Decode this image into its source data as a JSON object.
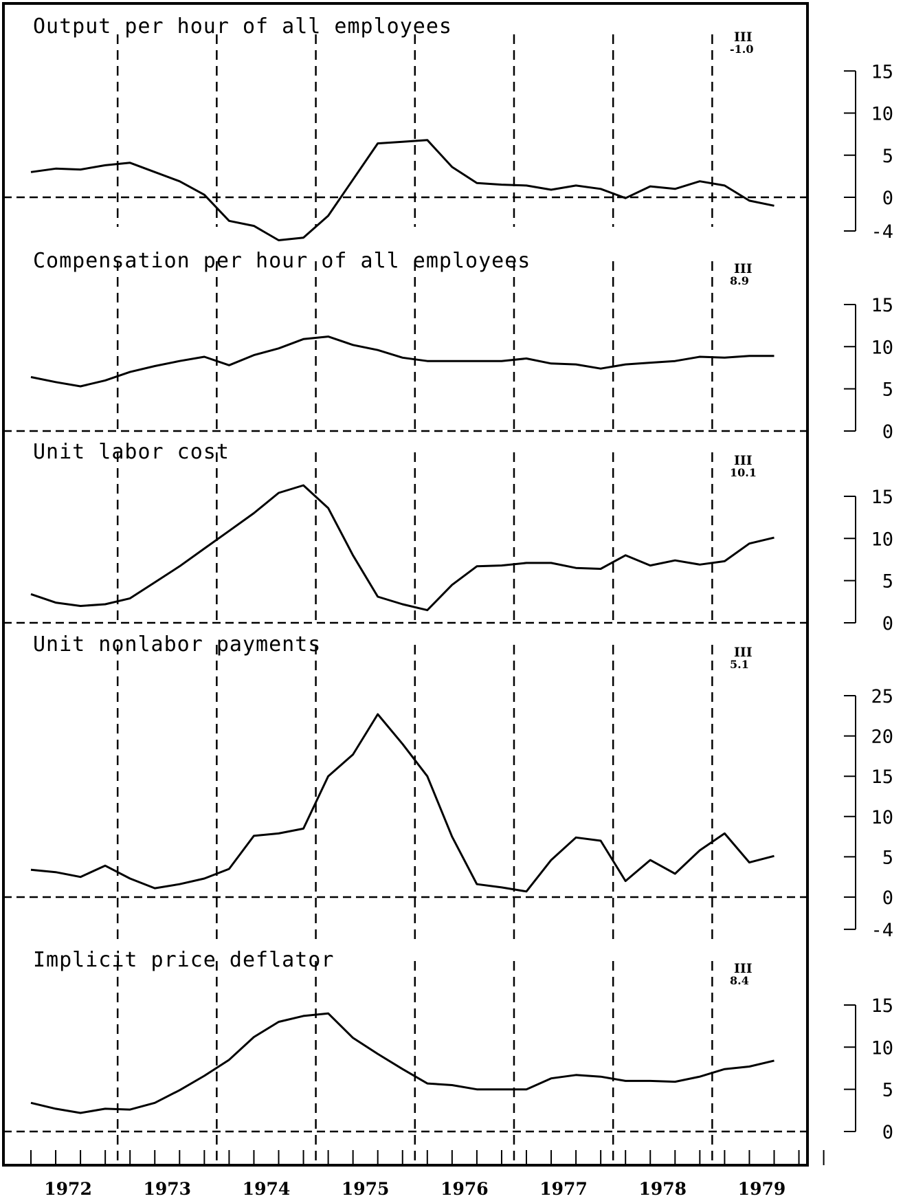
{
  "chart_data": {
    "type": "line",
    "x_label": "",
    "x_ticks": [
      "1972",
      "1973",
      "1974",
      "1975",
      "1976",
      "1977",
      "1978",
      "1979"
    ],
    "quarters_per_year": 4,
    "x_start": "1972 Q1",
    "x_end": "1979 Q3",
    "panels": [
      {
        "title": "Output per hour of all employees",
        "annotation_quarter": "III",
        "annotation_value": "-1.0",
        "yticks": [
          15,
          10,
          5,
          0,
          -4
        ],
        "ylim": [
          -4,
          15
        ],
        "values": [
          3.0,
          3.4,
          3.3,
          3.8,
          4.1,
          3.0,
          1.9,
          0.3,
          -2.8,
          -3.4,
          -5.1,
          -4.8,
          -2.2,
          2.1,
          6.4,
          6.6,
          6.8,
          3.6,
          1.7,
          1.5,
          1.4,
          0.9,
          1.4,
          1.0,
          -0.1,
          1.3,
          1.0,
          1.9,
          1.4,
          -0.4,
          -1.0
        ]
      },
      {
        "title": "Compensation per hour of all employees",
        "annotation_quarter": "III",
        "annotation_value": "8.9",
        "yticks": [
          15,
          10,
          5,
          0
        ],
        "ylim": [
          0,
          15
        ],
        "values": [
          6.4,
          5.8,
          5.3,
          6.0,
          7.0,
          7.7,
          8.3,
          8.8,
          7.8,
          9.0,
          9.8,
          10.9,
          11.2,
          10.2,
          9.6,
          8.7,
          8.3,
          8.3,
          8.3,
          8.3,
          8.6,
          8.0,
          7.9,
          7.4,
          7.9,
          8.1,
          8.3,
          8.8,
          8.7,
          8.9,
          8.9
        ]
      },
      {
        "title": "Unit labor cost",
        "annotation_quarter": "III",
        "annotation_value": "10.1",
        "yticks": [
          15,
          10,
          5,
          0
        ],
        "ylim": [
          0,
          15
        ],
        "values": [
          3.4,
          2.4,
          2.0,
          2.2,
          2.9,
          4.8,
          6.7,
          8.8,
          10.9,
          13.0,
          15.4,
          16.3,
          13.6,
          8.0,
          3.1,
          2.2,
          1.5,
          4.5,
          6.7,
          6.8,
          7.1,
          7.1,
          6.5,
          6.4,
          8.0,
          6.8,
          7.4,
          6.9,
          7.3,
          9.4,
          10.1
        ]
      },
      {
        "title": "Unit nonlabor payments",
        "annotation_quarter": "III",
        "annotation_value": "5.1",
        "yticks": [
          25,
          20,
          15,
          10,
          5,
          0,
          -4
        ],
        "ylim": [
          -4,
          25
        ],
        "values": [
          3.4,
          3.1,
          2.5,
          3.9,
          2.3,
          1.1,
          1.6,
          2.3,
          3.5,
          7.6,
          7.9,
          8.5,
          15.0,
          17.7,
          22.7,
          19.0,
          15.0,
          7.5,
          1.6,
          1.2,
          0.7,
          4.6,
          7.4,
          7.0,
          2.0,
          4.6,
          2.9,
          5.8,
          7.9,
          4.3,
          5.1
        ]
      },
      {
        "title": "Implicit price deflator",
        "annotation_quarter": "III",
        "annotation_value": "8.4",
        "yticks": [
          15,
          10,
          5,
          0
        ],
        "ylim": [
          0,
          15
        ],
        "values": [
          3.4,
          2.7,
          2.2,
          2.7,
          2.6,
          3.4,
          4.9,
          6.6,
          8.5,
          11.2,
          13.0,
          13.7,
          14.0,
          11.1,
          9.2,
          7.4,
          5.7,
          5.5,
          5.0,
          5.0,
          5.0,
          6.3,
          6.7,
          6.5,
          6.0,
          6.0,
          5.9,
          6.5,
          7.4,
          7.7,
          8.4
        ]
      }
    ],
    "grid": "dashed vertical lines at year boundaries and dashed zero lines"
  }
}
